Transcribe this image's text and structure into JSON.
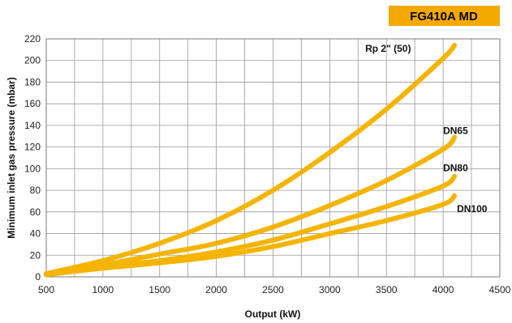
{
  "badge": {
    "text": "FG410A MD",
    "color": "#F4A900"
  },
  "chart_data": {
    "type": "line",
    "title": "",
    "xlabel": "Output (kW)",
    "ylabel": "Minimum inlet gas pressure (mbar)",
    "xlim": [
      500,
      4500
    ],
    "ylim": [
      0,
      220
    ],
    "x_ticks": [
      500,
      1000,
      1500,
      2000,
      2500,
      3000,
      3500,
      4000,
      4500
    ],
    "y_ticks": [
      0,
      20,
      40,
      60,
      80,
      100,
      120,
      140,
      160,
      180,
      200,
      220
    ],
    "grid": true,
    "line_color": "#F4B400",
    "series": [
      {
        "name": "Rp 2\" (50)",
        "x": [
          500,
          1000,
          1500,
          2000,
          2500,
          3000,
          3500,
          4000,
          4100
        ],
        "y": [
          3,
          15,
          31,
          52,
          80,
          115,
          155,
          202,
          214
        ]
      },
      {
        "name": "DN65",
        "x": [
          500,
          1000,
          1500,
          2000,
          2500,
          3000,
          3500,
          4000,
          4100
        ],
        "y": [
          2,
          11,
          21,
          31,
          46,
          66,
          89,
          118,
          129
        ]
      },
      {
        "name": "DN80",
        "x": [
          500,
          1000,
          1500,
          2000,
          2500,
          3000,
          3500,
          4000,
          4100
        ],
        "y": [
          2,
          9,
          15,
          23,
          34,
          49,
          65,
          84,
          93
        ]
      },
      {
        "name": "DN100",
        "x": [
          500,
          1000,
          1500,
          2000,
          2500,
          3000,
          3500,
          4000,
          4100
        ],
        "y": [
          2,
          8,
          13,
          19,
          28,
          40,
          52,
          67,
          75
        ]
      }
    ]
  }
}
